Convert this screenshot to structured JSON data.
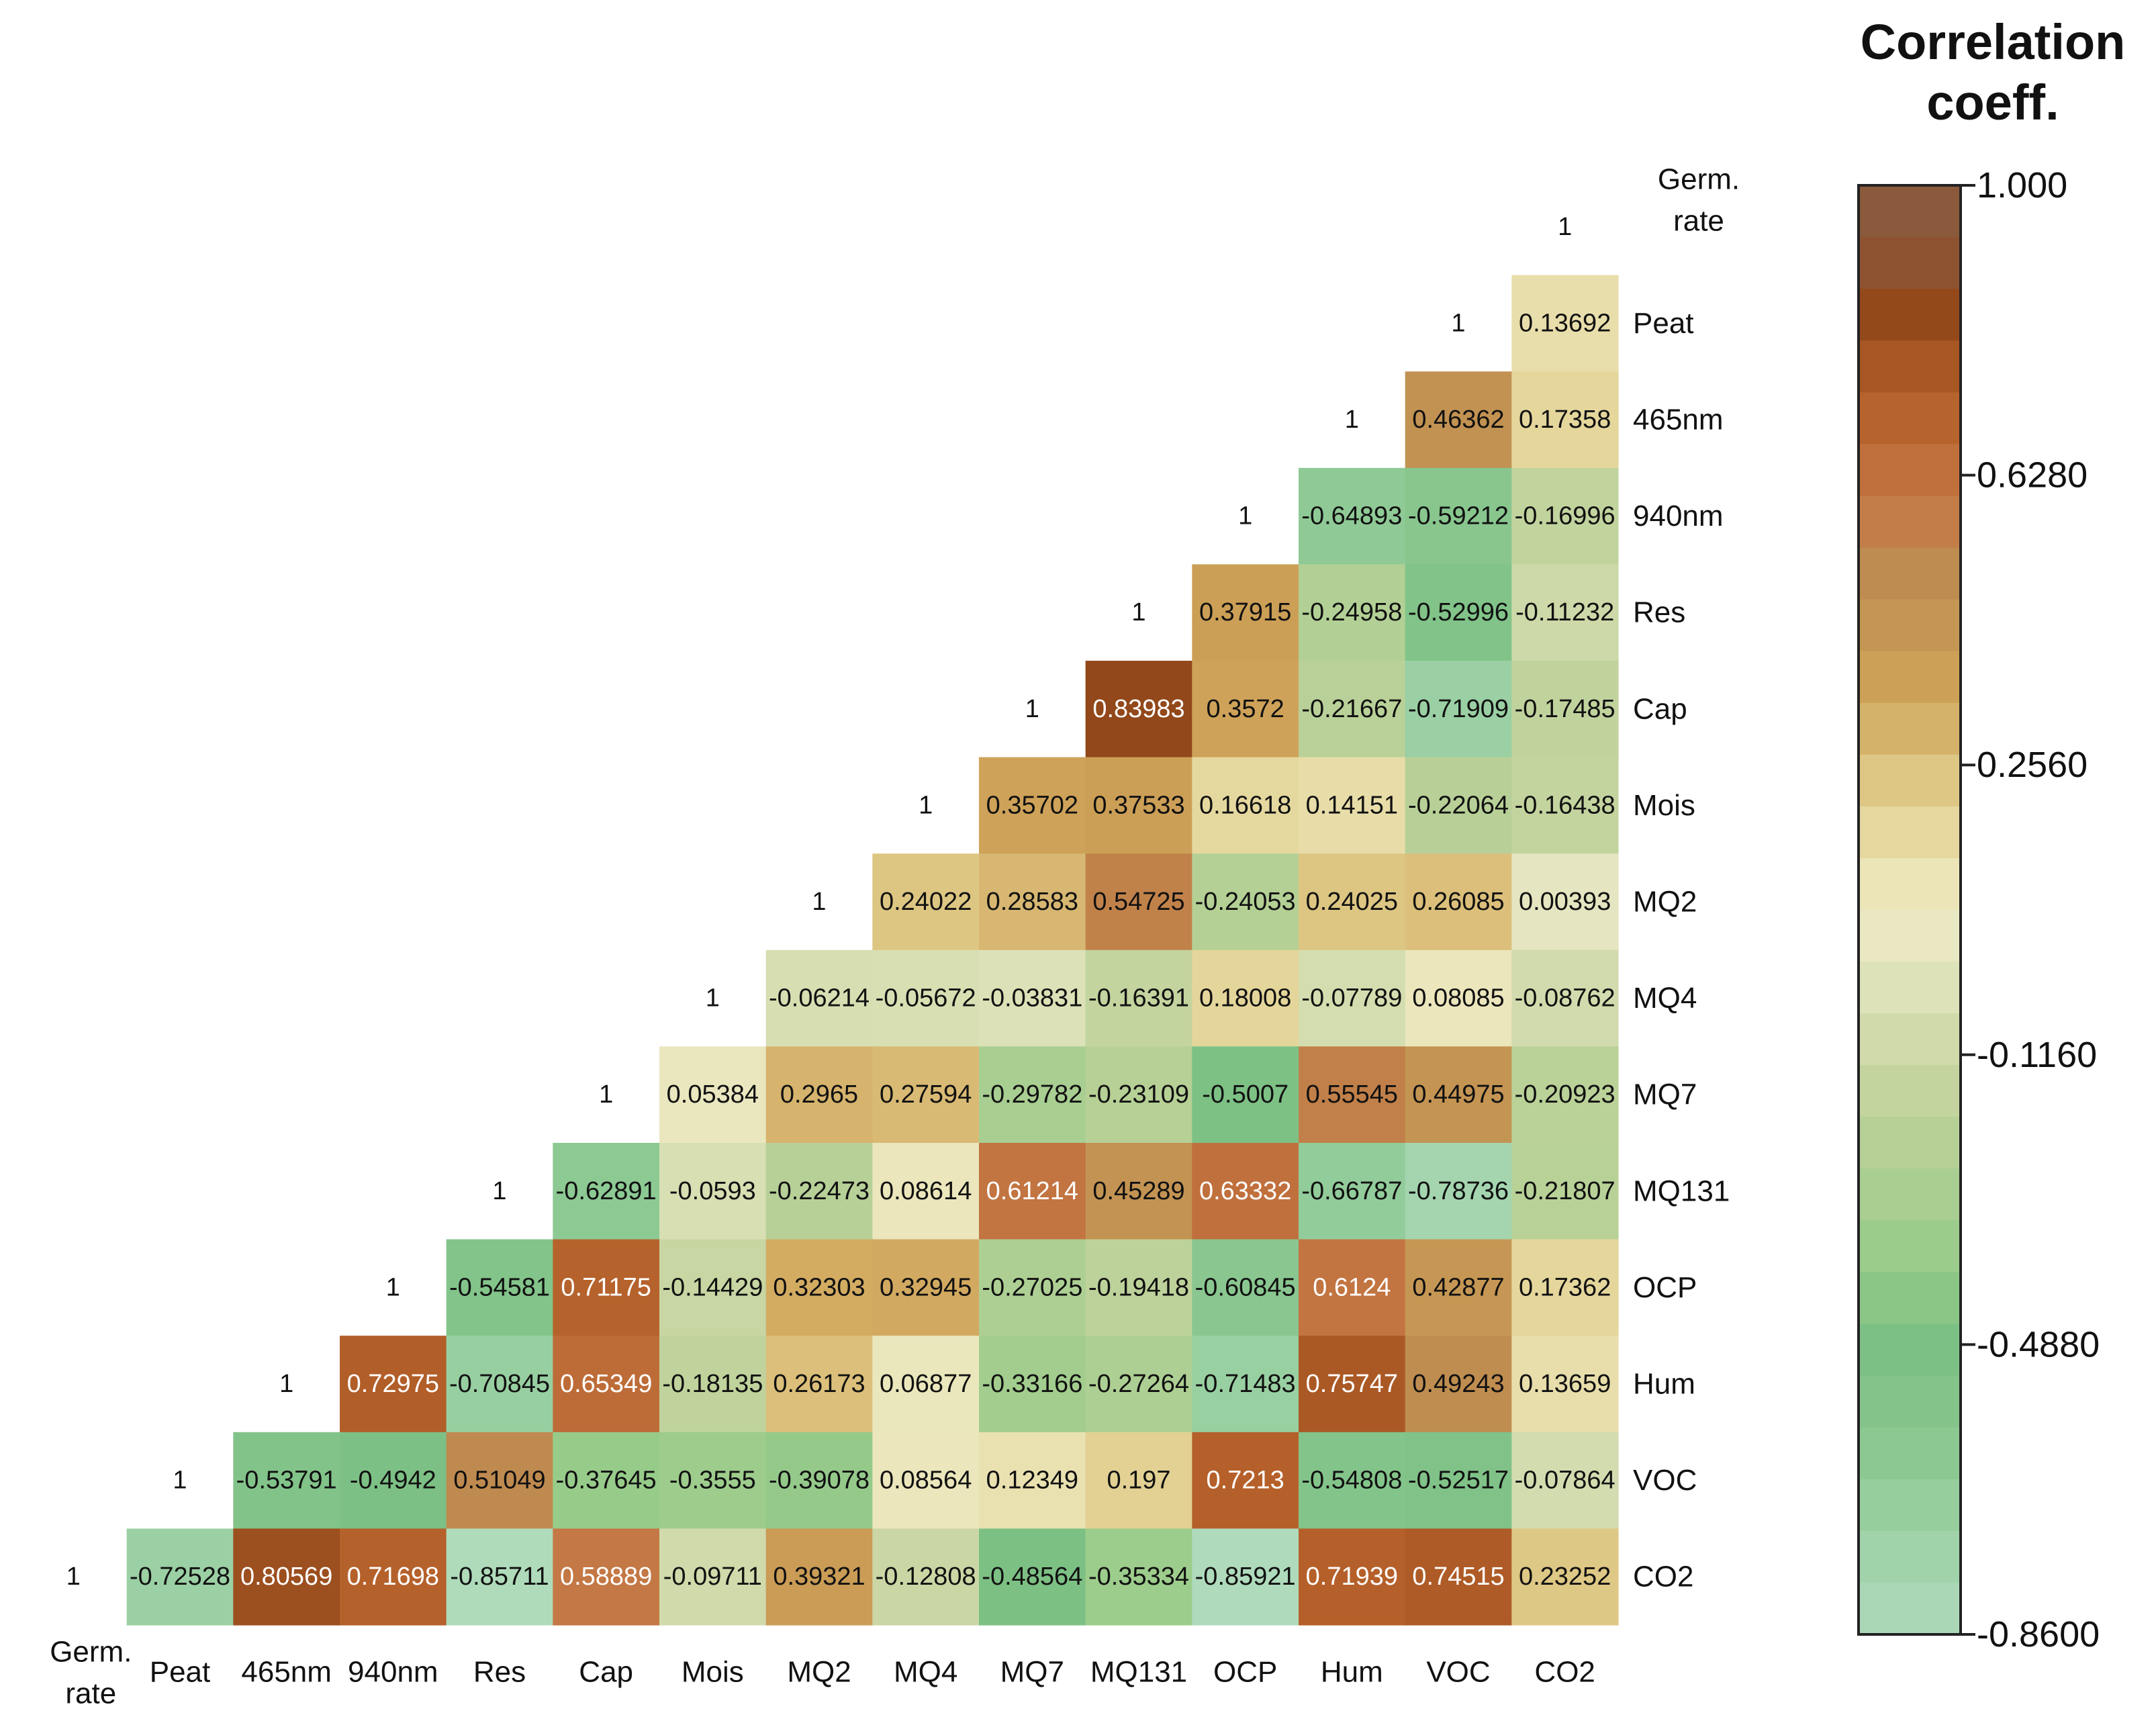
{
  "chart_data": {
    "type": "heatmap",
    "title": "",
    "colorbar": {
      "title_lines": [
        "Correlation",
        "coeff."
      ],
      "ticks": [
        "1.000",
        "0.6280",
        "0.2560",
        "-0.1160",
        "-0.4880",
        "-0.8600"
      ],
      "min": -0.86,
      "max": 1.0,
      "top_color": "#ffffff"
    },
    "variables": [
      {
        "id": "germ",
        "label_lines": [
          "Germ.",
          "rate"
        ]
      },
      {
        "id": "peat",
        "label_lines": [
          "Peat"
        ]
      },
      {
        "id": "465",
        "label_lines": [
          "465nm"
        ]
      },
      {
        "id": "940",
        "label_lines": [
          "940nm"
        ]
      },
      {
        "id": "res",
        "label_lines": [
          "Res"
        ]
      },
      {
        "id": "cap",
        "label_lines": [
          "Cap"
        ]
      },
      {
        "id": "mois",
        "label_lines": [
          "Mois"
        ]
      },
      {
        "id": "mq2",
        "label_lines": [
          "MQ2"
        ]
      },
      {
        "id": "mq4",
        "label_lines": [
          "MQ4"
        ]
      },
      {
        "id": "mq7",
        "label_lines": [
          "MQ7"
        ]
      },
      {
        "id": "mq131",
        "label_lines": [
          "MQ131"
        ]
      },
      {
        "id": "ocp",
        "label_lines": [
          "OCP"
        ]
      },
      {
        "id": "hum",
        "label_lines": [
          "Hum"
        ]
      },
      {
        "id": "voc",
        "label_lines": [
          "VOC"
        ]
      },
      {
        "id": "co2",
        "label_lines": [
          "CO2"
        ]
      }
    ],
    "rows": [
      [
        "1"
      ],
      [
        "1",
        "0.13692"
      ],
      [
        "1",
        "0.46362",
        "0.17358"
      ],
      [
        "1",
        "-0.64893",
        "-0.59212",
        "-0.16996"
      ],
      [
        "1",
        "0.37915",
        "-0.24958",
        "-0.52996",
        "-0.11232"
      ],
      [
        "1",
        "0.83983",
        "0.3572",
        "-0.21667",
        "-0.71909",
        "-0.17485"
      ],
      [
        "1",
        "0.35702",
        "0.37533",
        "0.16618",
        "0.14151",
        "-0.22064",
        "-0.16438"
      ],
      [
        "1",
        "0.24022",
        "0.28583",
        "0.54725",
        "-0.24053",
        "0.24025",
        "0.26085",
        "0.00393"
      ],
      [
        "1",
        "-0.06214",
        "-0.05672",
        "-0.03831",
        "-0.16391",
        "0.18008",
        "-0.07789",
        "0.08085",
        "-0.08762"
      ],
      [
        "1",
        "0.05384",
        "0.2965",
        "0.27594",
        "-0.29782",
        "-0.23109",
        "-0.5007",
        "0.55545",
        "0.44975",
        "-0.20923"
      ],
      [
        "1",
        "-0.62891",
        "-0.0593",
        "-0.22473",
        "0.08614",
        "0.61214",
        "0.45289",
        "0.63332",
        "-0.66787",
        "-0.78736",
        "-0.21807"
      ],
      [
        "1",
        "-0.54581",
        "0.71175",
        "-0.14429",
        "0.32303",
        "0.32945",
        "-0.27025",
        "-0.19418",
        "-0.60845",
        "0.6124",
        "0.42877",
        "0.17362"
      ],
      [
        "1",
        "0.72975",
        "-0.70845",
        "0.65349",
        "-0.18135",
        "0.26173",
        "0.06877",
        "-0.33166",
        "-0.27264",
        "-0.71483",
        "0.75747",
        "0.49243",
        "0.13659"
      ],
      [
        "1",
        "-0.53791",
        "-0.4942",
        "0.51049",
        "-0.37645",
        "-0.3555",
        "-0.39078",
        "0.08564",
        "0.12349",
        "0.197",
        "0.7213",
        "-0.54808",
        "-0.52517",
        "-0.07864"
      ],
      [
        "1",
        "-0.72528",
        "0.80569",
        "0.71698",
        "-0.85711",
        "0.58889",
        "-0.09711",
        "0.39321",
        "-0.12808",
        "-0.48564",
        "-0.35334",
        "-0.85921",
        "0.71939",
        "0.74515",
        "0.23252"
      ]
    ]
  }
}
